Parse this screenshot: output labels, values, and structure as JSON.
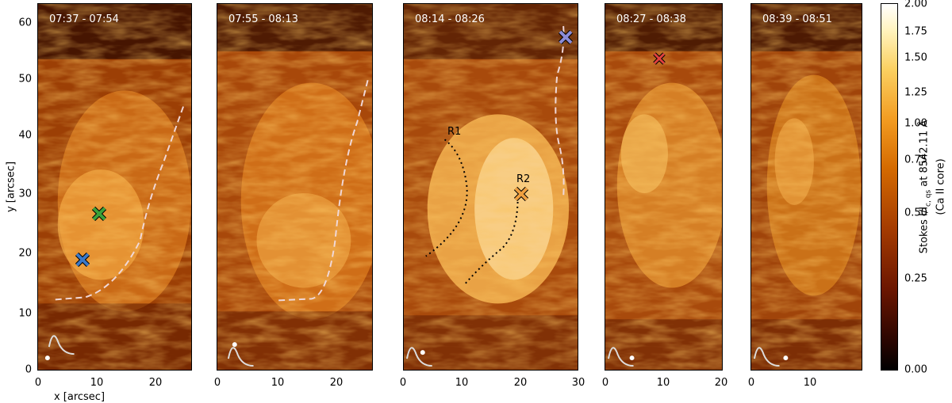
{
  "panels": [
    {
      "time": "07:37 - 07:54"
    },
    {
      "time": "07:55 - 08:13"
    },
    {
      "time": "08:14 - 08:26"
    },
    {
      "time": "08:27 - 08:38"
    },
    {
      "time": "08:39 - 08:51"
    }
  ],
  "axes": {
    "xlabel": "x [arcsec]",
    "ylabel": "y [arcsec]",
    "yticks": [
      "0",
      "10",
      "20",
      "30",
      "40",
      "50",
      "60"
    ],
    "xticks_panel1": [
      "0",
      "10",
      "20"
    ],
    "xticks_panel2": [
      "0",
      "10",
      "20"
    ],
    "xticks_panel3": [
      "0",
      "10",
      "20",
      "30"
    ],
    "xticks_panel4": [
      "0",
      "10",
      "20"
    ],
    "xticks_panel5": [
      "0",
      "10"
    ]
  },
  "annotations": {
    "r1": "R1",
    "r2": "R2"
  },
  "colorbar": {
    "ticks": [
      "2.00",
      "1.75",
      "1.50",
      "1.25",
      "1.00",
      "0.75",
      "0.50",
      "0.25",
      "0.00"
    ],
    "label_line1": "Stokes I/I",
    "label_sub": "c, qs",
    "label_rest": " at 8542.11 Å",
    "label_line2": "(Ca II core)"
  },
  "colors": {
    "marker_green": "#3aa13a",
    "marker_blue": "#3a78c8",
    "marker_purple": "#8c8cd8",
    "marker_red": "#e04040"
  }
}
